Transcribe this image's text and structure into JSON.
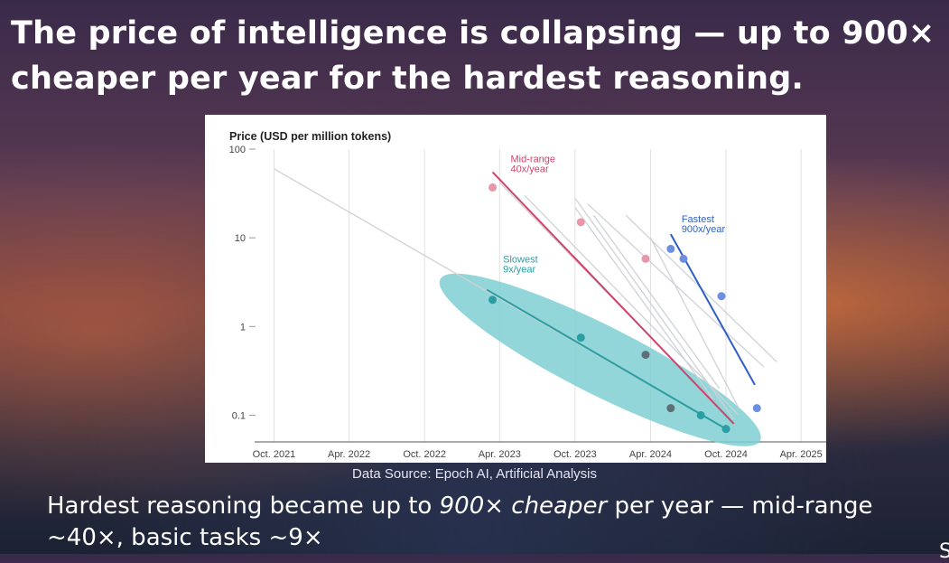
{
  "slide": {
    "title": "The price of intelligence is collapsing — up to 900× cheaper per year for the hardest reasoning.",
    "source": "Data Source: Epoch AI, Artificial Analysis",
    "subtitle_pre": "Hardest reasoning became up to ",
    "subtitle_em": "900× cheaper",
    "subtitle_post": " per year — mid-range ~40×, basic tasks ~9×",
    "page_mark": "S"
  },
  "colors": {
    "slowest": "#2a9ea3",
    "ellipse": "#7fcfd2",
    "midrange": "#d0436a",
    "fastest": "#2f5fc6",
    "grey_lines": "#cfd2d6",
    "grid": "#e1e1e1"
  },
  "chart_data": {
    "type": "scatter",
    "title": "Price (USD per million tokens)",
    "y_scale": "log",
    "ylim": [
      0.05,
      100
    ],
    "y_ticks": [
      {
        "value": 100,
        "label": "100"
      },
      {
        "value": 10,
        "label": "10"
      },
      {
        "value": 1,
        "label": "1"
      },
      {
        "value": 0.1,
        "label": "0.1"
      }
    ],
    "xlim": [
      "2021-08-15",
      "2025-06-01"
    ],
    "x_ticks": [
      {
        "date": "2021-10-01",
        "label": "Oct. 2021"
      },
      {
        "date": "2022-04-01",
        "label": "Apr. 2022"
      },
      {
        "date": "2022-10-01",
        "label": "Oct. 2022"
      },
      {
        "date": "2023-04-01",
        "label": "Apr. 2023"
      },
      {
        "date": "2023-10-01",
        "label": "Oct. 2023"
      },
      {
        "date": "2024-04-01",
        "label": "Apr. 2024"
      },
      {
        "date": "2024-10-01",
        "label": "Oct. 2024"
      },
      {
        "date": "2025-04-01",
        "label": "Apr. 2025"
      }
    ],
    "grid": true,
    "series": [
      {
        "name": "Slowest",
        "annotation": [
          "Slowest",
          "9x/year"
        ],
        "color": "#2a9ea3",
        "points": [
          {
            "date": "2023-03-15",
            "value": 2.0,
            "color": "#2a9ea3"
          },
          {
            "date": "2023-10-15",
            "value": 0.75,
            "color": "#2a9ea3"
          },
          {
            "date": "2024-03-20",
            "value": 0.48,
            "color": "#5f6f78"
          },
          {
            "date": "2024-05-20",
            "value": 0.12,
            "color": "#5f6f78"
          },
          {
            "date": "2024-08-01",
            "value": 0.1,
            "color": "#2a9ea3"
          },
          {
            "date": "2024-10-01",
            "value": 0.07,
            "color": "#2a9ea3"
          }
        ],
        "trend": [
          {
            "date": "2023-03-01",
            "value": 2.6
          },
          {
            "date": "2024-10-01",
            "value": 0.07
          }
        ]
      },
      {
        "name": "Mid-range",
        "annotation": [
          "Mid-range",
          "40x/year"
        ],
        "color": "#d0436a",
        "points": [
          {
            "date": "2023-03-15",
            "value": 37,
            "color": "#e896a8"
          },
          {
            "date": "2023-10-15",
            "value": 15,
            "color": "#e896a8"
          },
          {
            "date": "2024-03-20",
            "value": 5.8,
            "color": "#e896a8"
          }
        ],
        "trend": [
          {
            "date": "2023-03-15",
            "value": 55
          },
          {
            "date": "2024-10-20",
            "value": 0.08
          }
        ]
      },
      {
        "name": "Fastest",
        "annotation": [
          "Fastest",
          "900x/year"
        ],
        "color": "#2f5fc6",
        "points": [
          {
            "date": "2024-05-20",
            "value": 7.5,
            "color": "#6c8fe0"
          },
          {
            "date": "2024-06-20",
            "value": 5.8,
            "color": "#6c8fe0"
          },
          {
            "date": "2024-09-20",
            "value": 2.2,
            "color": "#6c8fe0"
          },
          {
            "date": "2024-12-15",
            "value": 0.12,
            "color": "#6c8fe0"
          }
        ],
        "trend": [
          {
            "date": "2024-05-20",
            "value": 11
          },
          {
            "date": "2024-12-10",
            "value": 0.22
          }
        ]
      }
    ],
    "background_trends": [
      [
        {
          "date": "2021-10-01",
          "value": 60
        },
        {
          "date": "2024-10-01",
          "value": 0.07
        }
      ],
      [
        {
          "date": "2023-04-01",
          "value": 42
        },
        {
          "date": "2024-08-01",
          "value": 0.2
        }
      ],
      [
        {
          "date": "2023-06-01",
          "value": 30
        },
        {
          "date": "2024-11-01",
          "value": 0.1
        }
      ],
      [
        {
          "date": "2023-10-01",
          "value": 28
        },
        {
          "date": "2024-10-20",
          "value": 0.09
        }
      ],
      [
        {
          "date": "2023-10-01",
          "value": 22
        },
        {
          "date": "2024-09-01",
          "value": 0.15
        }
      ],
      [
        {
          "date": "2023-11-01",
          "value": 24
        },
        {
          "date": "2025-01-01",
          "value": 0.35
        }
      ],
      [
        {
          "date": "2024-02-01",
          "value": 18
        },
        {
          "date": "2025-02-01",
          "value": 0.4
        }
      ],
      [
        {
          "date": "2024-04-01",
          "value": 10
        },
        {
          "date": "2024-11-01",
          "value": 0.12
        }
      ],
      [
        {
          "date": "2023-11-15",
          "value": 18
        },
        {
          "date": "2024-09-15",
          "value": 0.2
        }
      ]
    ],
    "slowest_ellipse": {
      "center": {
        "date": "2023-12-01",
        "value": 0.42
      },
      "from": {
        "date": "2022-10-01",
        "value": 3.3
      },
      "to": {
        "date": "2024-11-15",
        "value": 0.05
      }
    }
  }
}
